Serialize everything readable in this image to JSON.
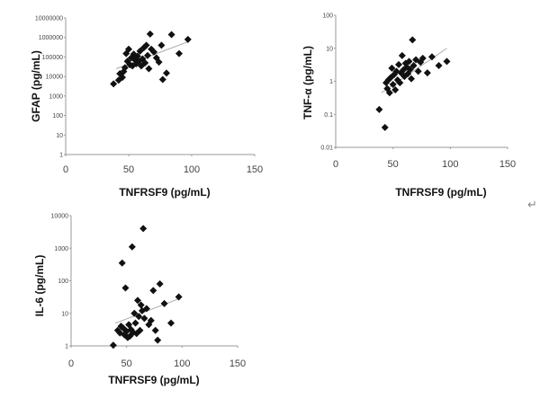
{
  "note_mark": "↵",
  "chart_data": [
    {
      "type": "scatter",
      "title": "",
      "xlabel": "TNFRSF9 (pg/mL)",
      "ylabel": "GFAP (pg/mL)",
      "y_scale": "log",
      "xlim": [
        0,
        150
      ],
      "ylim": [
        1,
        10000000
      ],
      "x_ticks": [
        0,
        50,
        100,
        150
      ],
      "y_ticks": [
        1,
        10,
        100,
        1000,
        10000,
        100000,
        1000000,
        10000000
      ],
      "y_tick_labels": [
        "1",
        "10",
        "100",
        "1000",
        "10000",
        "100000",
        "1000000",
        "10000000"
      ],
      "grid": false,
      "trendline": {
        "x": [
          40,
          97
        ],
        "y": [
          25000,
          600000
        ]
      },
      "points": [
        {
          "x": 38,
          "y": 4200
        },
        {
          "x": 42,
          "y": 6500
        },
        {
          "x": 43,
          "y": 14000
        },
        {
          "x": 45,
          "y": 9000
        },
        {
          "x": 46,
          "y": 18000
        },
        {
          "x": 47,
          "y": 28000
        },
        {
          "x": 48,
          "y": 150000
        },
        {
          "x": 49,
          "y": 60000
        },
        {
          "x": 50,
          "y": 250000
        },
        {
          "x": 51,
          "y": 40000
        },
        {
          "x": 52,
          "y": 90000
        },
        {
          "x": 53,
          "y": 35000
        },
        {
          "x": 54,
          "y": 140000
        },
        {
          "x": 55,
          "y": 70000
        },
        {
          "x": 56,
          "y": 45000
        },
        {
          "x": 57,
          "y": 110000
        },
        {
          "x": 58,
          "y": 60000
        },
        {
          "x": 59,
          "y": 200000
        },
        {
          "x": 60,
          "y": 35000
        },
        {
          "x": 61,
          "y": 80000
        },
        {
          "x": 62,
          "y": 300000
        },
        {
          "x": 63,
          "y": 50000
        },
        {
          "x": 64,
          "y": 400000
        },
        {
          "x": 65,
          "y": 120000
        },
        {
          "x": 66,
          "y": 25000
        },
        {
          "x": 67,
          "y": 1500000
        },
        {
          "x": 68,
          "y": 250000
        },
        {
          "x": 70,
          "y": 180000
        },
        {
          "x": 72,
          "y": 90000
        },
        {
          "x": 74,
          "y": 55000
        },
        {
          "x": 76,
          "y": 400000
        },
        {
          "x": 77,
          "y": 7000
        },
        {
          "x": 80,
          "y": 15000
        },
        {
          "x": 84,
          "y": 1400000
        },
        {
          "x": 90,
          "y": 150000
        },
        {
          "x": 97,
          "y": 800000
        }
      ]
    },
    {
      "type": "scatter",
      "title": "",
      "xlabel": "TNFRSF9 (pg/mL)",
      "ylabel": "TNF-α (pg/mL)",
      "y_scale": "log",
      "xlim": [
        0,
        150
      ],
      "ylim": [
        0.01,
        100
      ],
      "x_ticks": [
        0,
        50,
        100,
        150
      ],
      "y_ticks": [
        0.01,
        0.1,
        1,
        10,
        100
      ],
      "y_tick_labels": [
        "0.01",
        "0.1",
        "1",
        "10",
        "100"
      ],
      "grid": false,
      "trendline": {
        "x": [
          40,
          97
        ],
        "y": [
          0.45,
          10
        ]
      },
      "points": [
        {
          "x": 38,
          "y": 0.14
        },
        {
          "x": 43,
          "y": 0.04
        },
        {
          "x": 44,
          "y": 0.9
        },
        {
          "x": 45,
          "y": 0.6
        },
        {
          "x": 46,
          "y": 1.1
        },
        {
          "x": 47,
          "y": 0.45
        },
        {
          "x": 48,
          "y": 1.3
        },
        {
          "x": 49,
          "y": 2.5
        },
        {
          "x": 50,
          "y": 0.8
        },
        {
          "x": 51,
          "y": 1.6
        },
        {
          "x": 52,
          "y": 0.55
        },
        {
          "x": 53,
          "y": 2.0
        },
        {
          "x": 54,
          "y": 1.1
        },
        {
          "x": 55,
          "y": 3.2
        },
        {
          "x": 56,
          "y": 0.9
        },
        {
          "x": 57,
          "y": 1.8
        },
        {
          "x": 58,
          "y": 6.0
        },
        {
          "x": 59,
          "y": 2.2
        },
        {
          "x": 60,
          "y": 1.4
        },
        {
          "x": 61,
          "y": 3.5
        },
        {
          "x": 62,
          "y": 2.7
        },
        {
          "x": 63,
          "y": 1.7
        },
        {
          "x": 64,
          "y": 4.0
        },
        {
          "x": 65,
          "y": 2.3
        },
        {
          "x": 66,
          "y": 1.2
        },
        {
          "x": 67,
          "y": 18.0
        },
        {
          "x": 68,
          "y": 3.0
        },
        {
          "x": 70,
          "y": 4.5
        },
        {
          "x": 72,
          "y": 2.0
        },
        {
          "x": 74,
          "y": 3.8
        },
        {
          "x": 76,
          "y": 5.0
        },
        {
          "x": 80,
          "y": 1.8
        },
        {
          "x": 84,
          "y": 5.5
        },
        {
          "x": 90,
          "y": 3.0
        },
        {
          "x": 97,
          "y": 4.0
        }
      ]
    },
    {
      "type": "scatter",
      "title": "",
      "xlabel": "TNFRSF9 (pg/mL)",
      "ylabel": "IL-6 (pg/mL)",
      "y_scale": "log",
      "xlim": [
        0,
        150
      ],
      "ylim": [
        1,
        10000
      ],
      "x_ticks": [
        0,
        50,
        100,
        150
      ],
      "y_ticks": [
        1,
        10,
        100,
        1000,
        10000
      ],
      "y_tick_labels": [
        "1",
        "10",
        "100",
        "1000",
        "10000"
      ],
      "grid": false,
      "trendline": {
        "x": [
          40,
          97
        ],
        "y": [
          5,
          28
        ]
      },
      "points": [
        {
          "x": 38,
          "y": 1.05
        },
        {
          "x": 42,
          "y": 3.0
        },
        {
          "x": 44,
          "y": 2.5
        },
        {
          "x": 45,
          "y": 4.0
        },
        {
          "x": 46,
          "y": 350
        },
        {
          "x": 47,
          "y": 3.5
        },
        {
          "x": 48,
          "y": 2.2
        },
        {
          "x": 49,
          "y": 60
        },
        {
          "x": 50,
          "y": 2.8
        },
        {
          "x": 51,
          "y": 1.8
        },
        {
          "x": 52,
          "y": 4.5
        },
        {
          "x": 53,
          "y": 2.0
        },
        {
          "x": 54,
          "y": 3.2
        },
        {
          "x": 55,
          "y": 1100
        },
        {
          "x": 56,
          "y": 2.6
        },
        {
          "x": 57,
          "y": 10
        },
        {
          "x": 58,
          "y": 5.0
        },
        {
          "x": 59,
          "y": 2.4
        },
        {
          "x": 60,
          "y": 25
        },
        {
          "x": 61,
          "y": 8.0
        },
        {
          "x": 62,
          "y": 3.0
        },
        {
          "x": 63,
          "y": 18
        },
        {
          "x": 64,
          "y": 12
        },
        {
          "x": 65,
          "y": 4000
        },
        {
          "x": 66,
          "y": 7.0
        },
        {
          "x": 68,
          "y": 14
        },
        {
          "x": 70,
          "y": 4.5
        },
        {
          "x": 72,
          "y": 6.0
        },
        {
          "x": 74,
          "y": 50
        },
        {
          "x": 76,
          "y": 3.0
        },
        {
          "x": 78,
          "y": 1.5
        },
        {
          "x": 80,
          "y": 80
        },
        {
          "x": 84,
          "y": 20
        },
        {
          "x": 90,
          "y": 5.0
        },
        {
          "x": 97,
          "y": 32
        }
      ]
    }
  ]
}
